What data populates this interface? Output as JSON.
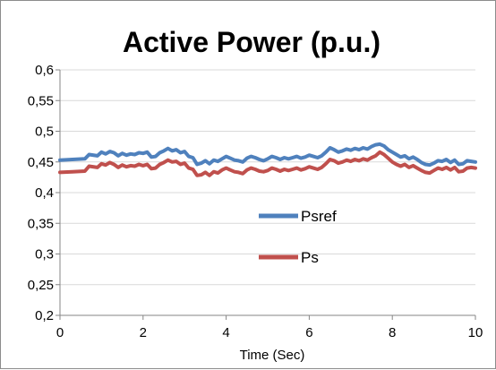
{
  "chart_data": {
    "type": "line",
    "title": "Active Power (p.u.)",
    "xlabel": "Time (Sec)",
    "ylabel": "",
    "xlim": [
      0,
      10
    ],
    "ylim": [
      0.2,
      0.6
    ],
    "x_ticks": [
      0,
      2,
      4,
      6,
      8,
      10
    ],
    "y_ticks": [
      0.2,
      0.25,
      0.3,
      0.35,
      0.4,
      0.45,
      0.5,
      0.55,
      0.6
    ],
    "x_tick_labels": [
      "0",
      "2",
      "4",
      "6",
      "8",
      "10"
    ],
    "y_tick_labels": [
      "0,2",
      "0,25",
      "0,3",
      "0,35",
      "0,4",
      "0,45",
      "0,5",
      "0,55",
      "0,6"
    ],
    "grid": "horizontal",
    "legend_position": "center-right",
    "series": [
      {
        "name": "Psref",
        "color": "#4f81bd",
        "x": [
          0,
          0.3,
          0.6,
          0.7,
          0.9,
          1.0,
          1.1,
          1.2,
          1.3,
          1.4,
          1.5,
          1.6,
          1.7,
          1.8,
          1.9,
          2.0,
          2.1,
          2.2,
          2.3,
          2.4,
          2.5,
          2.6,
          2.7,
          2.8,
          2.9,
          3.0,
          3.1,
          3.2,
          3.3,
          3.4,
          3.5,
          3.6,
          3.7,
          3.8,
          3.9,
          4.0,
          4.1,
          4.2,
          4.3,
          4.4,
          4.5,
          4.6,
          4.7,
          4.8,
          4.9,
          5.0,
          5.1,
          5.2,
          5.3,
          5.4,
          5.5,
          5.6,
          5.7,
          5.8,
          5.9,
          6.0,
          6.1,
          6.2,
          6.3,
          6.4,
          6.5,
          6.6,
          6.7,
          6.8,
          6.9,
          7.0,
          7.1,
          7.2,
          7.3,
          7.4,
          7.5,
          7.6,
          7.7,
          7.8,
          7.9,
          8.0,
          8.1,
          8.2,
          8.3,
          8.4,
          8.5,
          8.6,
          8.7,
          8.8,
          8.9,
          9.0,
          9.1,
          9.2,
          9.3,
          9.4,
          9.5,
          9.6,
          9.7,
          9.8,
          9.9,
          10.0
        ],
        "values": [
          0.453,
          0.454,
          0.455,
          0.462,
          0.46,
          0.466,
          0.463,
          0.467,
          0.465,
          0.46,
          0.464,
          0.461,
          0.463,
          0.462,
          0.465,
          0.464,
          0.466,
          0.458,
          0.459,
          0.465,
          0.468,
          0.472,
          0.468,
          0.47,
          0.465,
          0.467,
          0.459,
          0.457,
          0.446,
          0.448,
          0.452,
          0.447,
          0.453,
          0.451,
          0.455,
          0.459,
          0.456,
          0.453,
          0.452,
          0.45,
          0.456,
          0.459,
          0.457,
          0.454,
          0.452,
          0.455,
          0.459,
          0.457,
          0.454,
          0.457,
          0.455,
          0.457,
          0.459,
          0.456,
          0.458,
          0.461,
          0.459,
          0.457,
          0.46,
          0.466,
          0.473,
          0.47,
          0.466,
          0.468,
          0.471,
          0.469,
          0.472,
          0.47,
          0.473,
          0.471,
          0.475,
          0.478,
          0.479,
          0.476,
          0.47,
          0.466,
          0.462,
          0.458,
          0.46,
          0.455,
          0.458,
          0.454,
          0.449,
          0.446,
          0.445,
          0.448,
          0.452,
          0.451,
          0.454,
          0.449,
          0.453,
          0.446,
          0.447,
          0.452,
          0.451,
          0.45
        ]
      },
      {
        "name": "Ps",
        "color": "#c0504d",
        "x": [
          0,
          0.3,
          0.6,
          0.7,
          0.9,
          1.0,
          1.1,
          1.2,
          1.3,
          1.4,
          1.5,
          1.6,
          1.7,
          1.8,
          1.9,
          2.0,
          2.1,
          2.2,
          2.3,
          2.4,
          2.5,
          2.6,
          2.7,
          2.8,
          2.9,
          3.0,
          3.1,
          3.2,
          3.3,
          3.4,
          3.5,
          3.6,
          3.7,
          3.8,
          3.9,
          4.0,
          4.1,
          4.2,
          4.3,
          4.4,
          4.5,
          4.6,
          4.7,
          4.8,
          4.9,
          5.0,
          5.1,
          5.2,
          5.3,
          5.4,
          5.5,
          5.6,
          5.7,
          5.8,
          5.9,
          6.0,
          6.1,
          6.2,
          6.3,
          6.4,
          6.5,
          6.6,
          6.7,
          6.8,
          6.9,
          7.0,
          7.1,
          7.2,
          7.3,
          7.4,
          7.5,
          7.6,
          7.7,
          7.8,
          7.9,
          8.0,
          8.1,
          8.2,
          8.3,
          8.4,
          8.5,
          8.6,
          8.7,
          8.8,
          8.9,
          9.0,
          9.1,
          9.2,
          9.3,
          9.4,
          9.5,
          9.6,
          9.7,
          9.8,
          9.9,
          10.0
        ],
        "values": [
          0.433,
          0.434,
          0.435,
          0.443,
          0.441,
          0.447,
          0.445,
          0.449,
          0.446,
          0.441,
          0.445,
          0.442,
          0.444,
          0.443,
          0.446,
          0.444,
          0.446,
          0.439,
          0.44,
          0.446,
          0.449,
          0.453,
          0.45,
          0.451,
          0.446,
          0.448,
          0.44,
          0.438,
          0.428,
          0.429,
          0.433,
          0.428,
          0.434,
          0.432,
          0.437,
          0.44,
          0.437,
          0.434,
          0.433,
          0.431,
          0.437,
          0.44,
          0.438,
          0.435,
          0.434,
          0.436,
          0.44,
          0.438,
          0.435,
          0.438,
          0.436,
          0.438,
          0.44,
          0.437,
          0.439,
          0.442,
          0.44,
          0.438,
          0.441,
          0.447,
          0.454,
          0.452,
          0.448,
          0.45,
          0.453,
          0.451,
          0.454,
          0.452,
          0.455,
          0.453,
          0.457,
          0.46,
          0.466,
          0.462,
          0.456,
          0.45,
          0.446,
          0.443,
          0.446,
          0.441,
          0.444,
          0.44,
          0.436,
          0.433,
          0.432,
          0.436,
          0.44,
          0.438,
          0.441,
          0.437,
          0.441,
          0.434,
          0.435,
          0.44,
          0.441,
          0.44
        ]
      }
    ]
  }
}
